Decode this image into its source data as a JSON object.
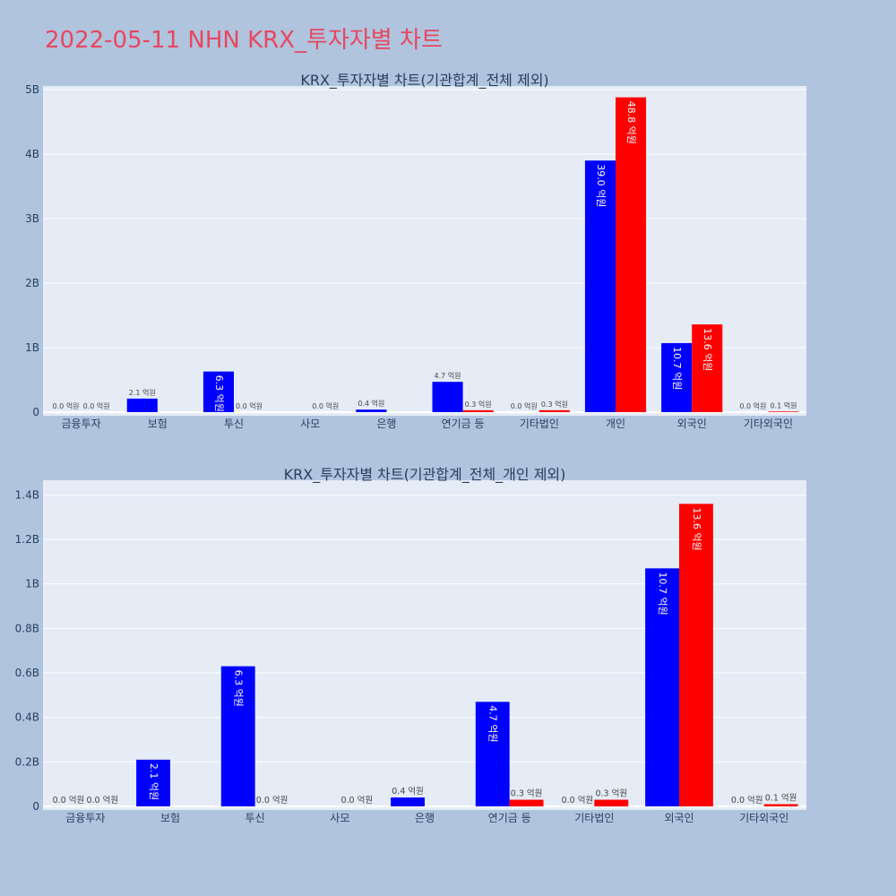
{
  "page": {
    "title": "2022-05-11 NHN KRX_투자자별 차트"
  },
  "colors": {
    "buy": "#0000ff",
    "sell": "#ff0000",
    "plot_bg": "#e5ecf6",
    "page_bg": "#b0c4de",
    "title": "#e8475f"
  },
  "chart_data": [
    {
      "type": "bar",
      "title": "KRX_투자자별 차트(기관합계_전체 제외)",
      "categories": [
        "금융투자",
        "보험",
        "투신",
        "사모",
        "은행",
        "연기금 등",
        "기타법인",
        "개인",
        "외국인",
        "기타외국인"
      ],
      "series": [
        {
          "values": [
            0.0,
            210000000,
            630000000,
            0.0,
            40000000,
            470000000,
            0.0,
            3900000000,
            1070000000,
            0.0
          ],
          "labels": [
            "0.0 억원",
            "2.1 억원",
            "6.3 억원",
            "",
            "0.4 억원",
            "4.7 억원",
            "0.0 억원",
            "39.0 억원",
            "10.7 억원",
            "0.0 억원"
          ]
        },
        {
          "values": [
            0.0,
            0.0,
            0.0,
            0.0,
            0.0,
            30000000,
            30000000,
            4880000000,
            1360000000,
            10000000
          ],
          "labels": [
            "0.0 억원",
            "",
            "0.0 억원",
            "0.0 억원",
            "",
            "0.3 억원",
            "0.3 억원",
            "48.8 억원",
            "13.6 억원",
            "0.1 억원"
          ]
        }
      ],
      "ylim": [
        0,
        5000000000
      ],
      "yticks": [
        0,
        1000000000,
        2000000000,
        3000000000,
        4000000000,
        5000000000
      ],
      "ytick_labels": [
        "0",
        "1B",
        "2B",
        "3B",
        "4B",
        "5B"
      ],
      "grid": true
    },
    {
      "type": "bar",
      "title": "KRX_투자자별 차트(기관합계_전체_개인 제외)",
      "categories": [
        "금융투자",
        "보험",
        "투신",
        "사모",
        "은행",
        "연기금 등",
        "기타법인",
        "외국인",
        "기타외국인"
      ],
      "series": [
        {
          "values": [
            0.0,
            210000000,
            630000000,
            0.0,
            40000000,
            470000000,
            0.0,
            1070000000,
            0.0
          ],
          "labels": [
            "0.0 억원",
            "2.1 억원",
            "6.3 억원",
            "",
            "0.4 억원",
            "4.7 억원",
            "0.0 억원",
            "10.7 억원",
            "0.0 억원"
          ]
        },
        {
          "values": [
            0.0,
            0.0,
            0.0,
            0.0,
            0.0,
            30000000,
            30000000,
            1360000000,
            10000000
          ],
          "labels": [
            "0.0 억원",
            "",
            "0.0 억원",
            "0.0 억원",
            "",
            "0.3 억원",
            "0.3 억원",
            "13.6 억원",
            "0.1 억원"
          ]
        }
      ],
      "ylim": [
        0,
        1450000000
      ],
      "yticks": [
        0,
        200000000,
        400000000,
        600000000,
        800000000,
        1000000000,
        1200000000,
        1400000000
      ],
      "ytick_labels": [
        "0",
        "0.2B",
        "0.4B",
        "0.6B",
        "0.8B",
        "1B",
        "1.2B",
        "1.4B"
      ],
      "grid": true
    }
  ]
}
